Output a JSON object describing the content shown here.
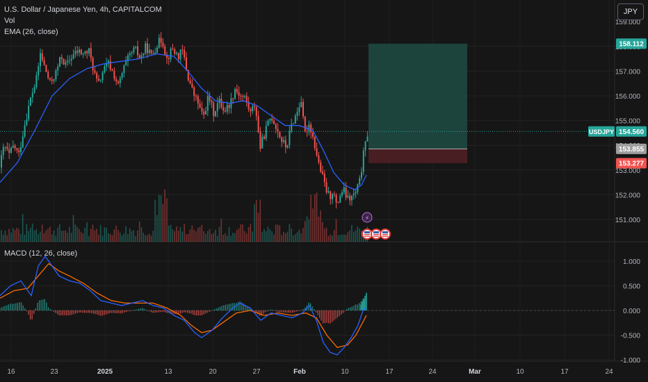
{
  "header": {
    "symbol_line": "U.S. Dollar / Japanese Yen, 4h, CAPITALCOM",
    "volume_label": "Vol",
    "ema_label": "EMA (26, close)",
    "currency_button": "JPY"
  },
  "macd": {
    "label": "MACD (12, 26, close)"
  },
  "price_labels": {
    "target": "158.112",
    "symbol_tag": "USDJPY",
    "current": "154.560",
    "entry": "153.855",
    "stop": "153.277"
  },
  "colors": {
    "up": "#26a69a",
    "down": "#ef5350",
    "ema": "#2962ff",
    "macd_line": "#2962ff",
    "signal_line": "#ff6d00",
    "target_zone": "#1e4b44",
    "stop_zone": "#4b1f24",
    "background": "#161616"
  },
  "chart_data": [
    {
      "type": "candlestick",
      "title": "U.S. Dollar / Japanese Yen, 4h, CAPITALCOM",
      "indicators": [
        "Vol",
        "EMA (26, close)"
      ],
      "x_ticks": [
        "16",
        "23",
        "2025",
        "13",
        "20",
        "27",
        "Feb",
        "10",
        "17",
        "24",
        "Mar",
        "10",
        "17",
        "24"
      ],
      "y_ticks": [
        151.0,
        152.0,
        153.0,
        154.0,
        155.0,
        156.0,
        157.0,
        158.0
      ],
      "ylim": [
        150.65,
        159.2
      ],
      "close_path": [
        [
          0,
          153.2
        ],
        [
          6,
          154.0
        ],
        [
          13,
          153.6
        ],
        [
          20,
          154.0
        ],
        [
          27,
          153.6
        ],
        [
          35,
          154.8
        ],
        [
          45,
          156.0
        ],
        [
          52,
          156.6
        ],
        [
          58,
          157.7
        ],
        [
          66,
          157.0
        ],
        [
          72,
          156.5
        ],
        [
          80,
          156.9
        ],
        [
          88,
          157.6
        ],
        [
          95,
          157.2
        ],
        [
          103,
          157.6
        ],
        [
          112,
          157.8
        ],
        [
          120,
          157.7
        ],
        [
          128,
          157.8
        ],
        [
          135,
          157.0
        ],
        [
          141,
          156.4
        ],
        [
          148,
          157.0
        ],
        [
          156,
          157.3
        ],
        [
          163,
          156.9
        ],
        [
          170,
          156.4
        ],
        [
          178,
          157.1
        ],
        [
          186,
          157.6
        ],
        [
          194,
          157.9
        ],
        [
          202,
          157.5
        ],
        [
          210,
          158.0
        ],
        [
          218,
          157.6
        ],
        [
          226,
          158.1
        ],
        [
          233,
          158.3
        ],
        [
          240,
          157.5
        ],
        [
          248,
          157.9
        ],
        [
          256,
          157.6
        ],
        [
          263,
          157.8
        ],
        [
          270,
          156.8
        ],
        [
          278,
          156.1
        ],
        [
          285,
          155.7
        ],
        [
          292,
          155.1
        ],
        [
          300,
          156.0
        ],
        [
          307,
          155.3
        ],
        [
          315,
          155.8
        ],
        [
          323,
          155.4
        ],
        [
          331,
          155.7
        ],
        [
          338,
          156.3
        ],
        [
          346,
          156.0
        ],
        [
          353,
          155.9
        ],
        [
          360,
          155.3
        ],
        [
          367,
          155.7
        ],
        [
          374,
          153.9
        ],
        [
          382,
          154.6
        ],
        [
          390,
          155.2
        ],
        [
          398,
          154.7
        ],
        [
          405,
          154.2
        ],
        [
          412,
          153.9
        ],
        [
          420,
          154.9
        ],
        [
          427,
          155.3
        ],
        [
          433,
          155.9
        ],
        [
          438,
          154.4
        ],
        [
          445,
          154.9
        ],
        [
          452,
          154.1
        ],
        [
          458,
          153.3
        ],
        [
          464,
          152.7
        ],
        [
          469,
          152.2
        ],
        [
          474,
          151.9
        ],
        [
          479,
          152.2
        ],
        [
          484,
          151.5
        ],
        [
          489,
          152.0
        ],
        [
          494,
          152.2
        ],
        [
          500,
          151.8
        ],
        [
          506,
          151.9
        ],
        [
          512,
          152.1
        ],
        [
          518,
          152.6
        ],
        [
          522,
          153.5
        ],
        [
          526,
          154.1
        ],
        [
          529,
          154.56
        ]
      ],
      "ema_path": [
        [
          0,
          152.5
        ],
        [
          25,
          153.3
        ],
        [
          50,
          154.6
        ],
        [
          75,
          156.0
        ],
        [
          100,
          156.7
        ],
        [
          125,
          157.1
        ],
        [
          150,
          157.3
        ],
        [
          175,
          157.4
        ],
        [
          200,
          157.5
        ],
        [
          225,
          157.7
        ],
        [
          250,
          157.6
        ],
        [
          270,
          157.0
        ],
        [
          290,
          156.3
        ],
        [
          310,
          155.8
        ],
        [
          330,
          155.7
        ],
        [
          350,
          155.8
        ],
        [
          370,
          155.6
        ],
        [
          390,
          155.2
        ],
        [
          410,
          154.8
        ],
        [
          430,
          154.8
        ],
        [
          450,
          154.6
        ],
        [
          465,
          153.8
        ],
        [
          480,
          152.9
        ],
        [
          495,
          152.4
        ],
        [
          510,
          152.2
        ],
        [
          520,
          152.4
        ],
        [
          527,
          152.8
        ]
      ],
      "volume_trend": "moderate bars with spikes near x≈230 and x≈450"
    },
    {
      "type": "line",
      "title": "MACD (12, 26, close)",
      "y_ticks": [
        -1.0,
        -0.5,
        0.0,
        0.5,
        1.0
      ],
      "ylim": [
        -1.1,
        1.2
      ],
      "series": [
        {
          "name": "MACD",
          "points": [
            [
              0,
              0.3
            ],
            [
              15,
              0.5
            ],
            [
              30,
              0.6
            ],
            [
              45,
              0.3
            ],
            [
              55,
              0.9
            ],
            [
              65,
              1.1
            ],
            [
              75,
              0.9
            ],
            [
              85,
              0.7
            ],
            [
              100,
              0.6
            ],
            [
              115,
              0.55
            ],
            [
              130,
              0.4
            ],
            [
              145,
              0.2
            ],
            [
              160,
              0.15
            ],
            [
              175,
              0.1
            ],
            [
              190,
              0.15
            ],
            [
              205,
              0.2
            ],
            [
              220,
              0.1
            ],
            [
              235,
              0.05
            ],
            [
              250,
              -0.1
            ],
            [
              265,
              -0.2
            ],
            [
              280,
              -0.45
            ],
            [
              290,
              -0.55
            ],
            [
              305,
              -0.4
            ],
            [
              320,
              -0.15
            ],
            [
              335,
              0.05
            ],
            [
              345,
              0.15
            ],
            [
              360,
              0.05
            ],
            [
              375,
              -0.2
            ],
            [
              390,
              -0.05
            ],
            [
              405,
              -0.1
            ],
            [
              420,
              -0.15
            ],
            [
              435,
              -0.05
            ],
            [
              445,
              0.1
            ],
            [
              455,
              -0.2
            ],
            [
              465,
              -0.65
            ],
            [
              475,
              -0.85
            ],
            [
              485,
              -0.9
            ],
            [
              495,
              -0.75
            ],
            [
              505,
              -0.55
            ],
            [
              515,
              -0.3
            ],
            [
              522,
              0.0
            ],
            [
              527,
              0.05
            ]
          ]
        },
        {
          "name": "Signal",
          "points": [
            [
              0,
              0.25
            ],
            [
              20,
              0.4
            ],
            [
              40,
              0.45
            ],
            [
              55,
              0.7
            ],
            [
              70,
              0.95
            ],
            [
              85,
              0.8
            ],
            [
              100,
              0.7
            ],
            [
              120,
              0.55
            ],
            [
              140,
              0.35
            ],
            [
              160,
              0.2
            ],
            [
              180,
              0.15
            ],
            [
              200,
              0.15
            ],
            [
              220,
              0.15
            ],
            [
              240,
              0.05
            ],
            [
              260,
              -0.1
            ],
            [
              275,
              -0.3
            ],
            [
              290,
              -0.45
            ],
            [
              305,
              -0.4
            ],
            [
              320,
              -0.25
            ],
            [
              340,
              -0.05
            ],
            [
              360,
              0.0
            ],
            [
              380,
              -0.1
            ],
            [
              400,
              -0.05
            ],
            [
              420,
              -0.1
            ],
            [
              440,
              -0.05
            ],
            [
              455,
              -0.15
            ],
            [
              470,
              -0.5
            ],
            [
              485,
              -0.75
            ],
            [
              500,
              -0.7
            ],
            [
              512,
              -0.5
            ],
            [
              527,
              -0.1
            ]
          ]
        },
        {
          "name": "Histogram",
          "trend": "positive bars growing at far right up to ~0.35"
        }
      ]
    }
  ]
}
